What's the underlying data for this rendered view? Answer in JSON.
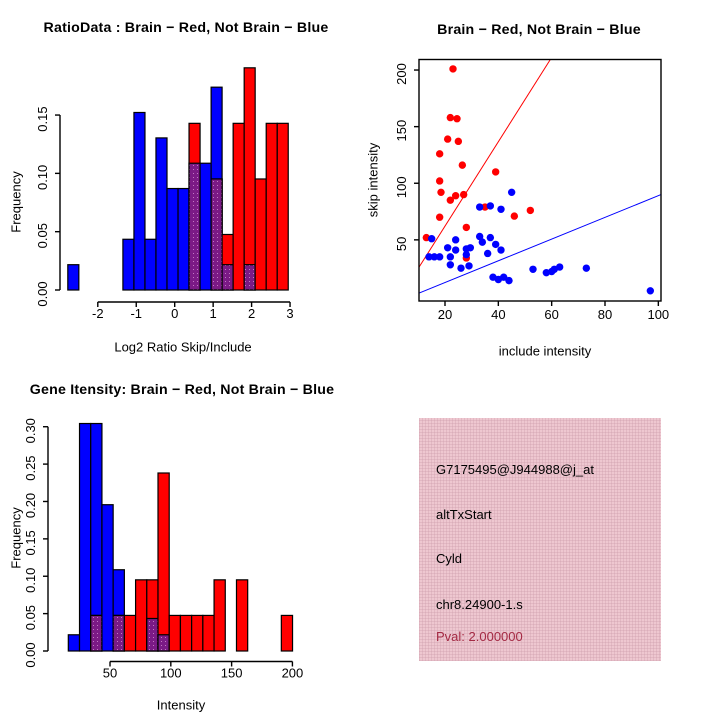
{
  "colors": {
    "blue": "#0000ff",
    "red": "#ff0000",
    "overlap_purple": "#7b1a86",
    "overlap_dot": "#c478c4",
    "panel_pink": "#eec7d0",
    "pval_red": "#a42a44",
    "axis_black": "#000000",
    "background": "#ffffff"
  },
  "legend_convention": "Brain = Red, Not Brain = Blue, overlap = purple",
  "chart_data": [
    {
      "id": "ratio_hist",
      "type": "bar",
      "variant": "overlaid-histogram",
      "title": "RatioData : Brain − Red, Not Brain − Blue",
      "xlabel": "Log2 Ratio Skip/Include",
      "ylabel": "Frequency",
      "xlim": [
        -2.983,
        3.337
      ],
      "ylim": [
        0,
        0.1972
      ],
      "grid": false,
      "xticks": [
        {
          "v": -2,
          "label": "-2"
        },
        {
          "v": -1,
          "label": "-1"
        },
        {
          "v": 0,
          "label": "0"
        },
        {
          "v": 1,
          "label": "1"
        },
        {
          "v": 2,
          "label": "2"
        },
        {
          "v": 3,
          "label": "3"
        }
      ],
      "yticks": [
        {
          "v": 0.0,
          "label": "0.00"
        },
        {
          "v": 0.05,
          "label": "0.05"
        },
        {
          "v": 0.1,
          "label": "0.10"
        },
        {
          "v": 0.15,
          "label": "0.15"
        }
      ],
      "bars": [
        {
          "x0": -2.78,
          "x1": -2.493,
          "blue": 0.0217,
          "red": 0
        },
        {
          "x0": -1.347,
          "x1": -1.06,
          "blue": 0.0435,
          "red": 0
        },
        {
          "x0": -1.06,
          "x1": -0.773,
          "blue": 0.1522,
          "red": 0
        },
        {
          "x0": -0.773,
          "x1": -0.487,
          "blue": 0.0435,
          "red": 0
        },
        {
          "x0": -0.487,
          "x1": -0.2,
          "blue": 0.1304,
          "red": 0
        },
        {
          "x0": -0.2,
          "x1": 0.087,
          "blue": 0.087,
          "red": 0
        },
        {
          "x0": 0.087,
          "x1": 0.373,
          "blue": 0.087,
          "red": 0
        },
        {
          "x0": 0.373,
          "x1": 0.66,
          "blue": 0.1087,
          "red": 0.1429
        },
        {
          "x0": 0.66,
          "x1": 0.947,
          "blue": 0.1087,
          "red": 0
        },
        {
          "x0": 0.947,
          "x1": 1.233,
          "blue": 0.1739,
          "red": 0.0952
        },
        {
          "x0": 1.233,
          "x1": 1.52,
          "blue": 0.0217,
          "red": 0.0476
        },
        {
          "x0": 1.52,
          "x1": 1.807,
          "blue": 0,
          "red": 0.1429
        },
        {
          "x0": 1.807,
          "x1": 2.093,
          "blue": 0.0217,
          "red": 0.1905
        },
        {
          "x0": 2.093,
          "x1": 2.38,
          "blue": 0,
          "red": 0.0952
        },
        {
          "x0": 2.38,
          "x1": 2.667,
          "blue": 0,
          "red": 0.1429
        },
        {
          "x0": 2.667,
          "x1": 2.953,
          "blue": 0,
          "red": 0.1429
        }
      ]
    },
    {
      "id": "intensity_scatter",
      "type": "scatter",
      "title": "Brain − Red, Not Brain − Blue",
      "xlabel": "include intensity",
      "ylabel": "skip intensity",
      "xlim": [
        10.25,
        101
      ],
      "ylim": [
        -4,
        209.3
      ],
      "grid": false,
      "box": true,
      "xticks": [
        {
          "v": 20,
          "label": "20"
        },
        {
          "v": 40,
          "label": "40"
        },
        {
          "v": 60,
          "label": "60"
        },
        {
          "v": 80,
          "label": "80"
        },
        {
          "v": 100,
          "label": "100"
        }
      ],
      "yticks": [
        {
          "v": 50,
          "label": "50"
        },
        {
          "v": 100,
          "label": "100"
        },
        {
          "v": 150,
          "label": "150"
        },
        {
          "v": 200,
          "label": "200"
        }
      ],
      "series": [
        {
          "name": "Brain",
          "color": "red",
          "points": [
            [
              23,
              201
            ],
            [
              22,
              158
            ],
            [
              24.5,
              157
            ],
            [
              21,
              139
            ],
            [
              25,
              137
            ],
            [
              18,
              126
            ],
            [
              26.5,
              116
            ],
            [
              39,
              110
            ],
            [
              18,
              102
            ],
            [
              18.5,
              92
            ],
            [
              22,
              85
            ],
            [
              24,
              89
            ],
            [
              27,
              90
            ],
            [
              18,
              70
            ],
            [
              28,
              61
            ],
            [
              35,
              79
            ],
            [
              46,
              71
            ],
            [
              52,
              76
            ],
            [
              13,
              52
            ],
            [
              28,
              34
            ]
          ]
        },
        {
          "name": "Not Brain",
          "color": "blue",
          "points": [
            [
              15,
              51
            ],
            [
              24,
              50
            ],
            [
              33,
              53
            ],
            [
              37,
              52
            ],
            [
              34,
              48
            ],
            [
              45,
              92
            ],
            [
              33,
              79
            ],
            [
              37,
              80
            ],
            [
              41,
              77
            ],
            [
              21,
              43
            ],
            [
              24,
              41
            ],
            [
              28,
              42
            ],
            [
              29.5,
              43
            ],
            [
              39,
              46
            ],
            [
              41,
              41
            ],
            [
              36,
              38
            ],
            [
              14,
              35
            ],
            [
              16,
              35
            ],
            [
              18,
              35
            ],
            [
              22,
              35
            ],
            [
              28,
              37
            ],
            [
              22,
              28
            ],
            [
              26,
              25
            ],
            [
              29,
              27
            ],
            [
              38,
              17
            ],
            [
              40,
              15
            ],
            [
              42,
              17
            ],
            [
              44,
              14
            ],
            [
              53,
              24
            ],
            [
              58,
              21
            ],
            [
              60,
              22
            ],
            [
              61,
              24
            ],
            [
              63,
              26
            ],
            [
              73,
              25
            ],
            [
              97,
              5
            ]
          ]
        }
      ],
      "lines": [
        {
          "color": "red",
          "from": [
            10.3,
            26
          ],
          "to": [
            59.5,
            209.3
          ]
        },
        {
          "color": "blue",
          "from": [
            10.3,
            3
          ],
          "to": [
            101,
            90
          ]
        }
      ]
    },
    {
      "id": "gene_hist",
      "type": "bar",
      "variant": "overlaid-histogram",
      "title": "Gene Itensity: Brain − Red, Not Brain − Blue",
      "xlabel": "Intensity",
      "ylabel": "Frequency",
      "xlim": [
        -1,
        208.7
      ],
      "ylim": [
        0,
        0.309
      ],
      "grid": false,
      "xticks": [
        {
          "v": 50,
          "label": "50"
        },
        {
          "v": 100,
          "label": "100"
        },
        {
          "v": 150,
          "label": "150"
        },
        {
          "v": 200,
          "label": "200"
        }
      ],
      "yticks": [
        {
          "v": 0.0,
          "label": "0.00"
        },
        {
          "v": 0.05,
          "label": "0.05"
        },
        {
          "v": 0.1,
          "label": "0.10"
        },
        {
          "v": 0.15,
          "label": "0.15"
        },
        {
          "v": 0.2,
          "label": "0.20"
        },
        {
          "v": 0.25,
          "label": "0.25"
        },
        {
          "v": 0.3,
          "label": "0.30"
        }
      ],
      "bars": [
        {
          "x0": 15.7,
          "x1": 24.92,
          "blue": 0.0217,
          "red": 0
        },
        {
          "x0": 24.92,
          "x1": 34.14,
          "blue": 0.3043,
          "red": 0
        },
        {
          "x0": 34.14,
          "x1": 43.36,
          "blue": 0.3043,
          "red": 0.0476
        },
        {
          "x0": 43.36,
          "x1": 52.58,
          "blue": 0.1957,
          "red": 0
        },
        {
          "x0": 52.58,
          "x1": 61.8,
          "blue": 0.1087,
          "red": 0.0476
        },
        {
          "x0": 61.8,
          "x1": 71.02,
          "blue": 0,
          "red": 0.0476
        },
        {
          "x0": 71.02,
          "x1": 80.24,
          "blue": 0,
          "red": 0.0952
        },
        {
          "x0": 80.24,
          "x1": 89.46,
          "blue": 0.0435,
          "red": 0.0952
        },
        {
          "x0": 89.46,
          "x1": 98.68,
          "blue": 0.0217,
          "red": 0.2381
        },
        {
          "x0": 98.68,
          "x1": 107.9,
          "blue": 0,
          "red": 0.0476
        },
        {
          "x0": 107.9,
          "x1": 117.12,
          "blue": 0,
          "red": 0.0476
        },
        {
          "x0": 117.12,
          "x1": 126.34,
          "blue": 0,
          "red": 0.0476
        },
        {
          "x0": 126.34,
          "x1": 135.56,
          "blue": 0,
          "red": 0.0476
        },
        {
          "x0": 135.56,
          "x1": 144.78,
          "blue": 0,
          "red": 0.0952
        },
        {
          "x0": 154.0,
          "x1": 163.22,
          "blue": 0,
          "red": 0.0952
        },
        {
          "x0": 190.88,
          "x1": 200.1,
          "blue": 0,
          "red": 0.0476
        }
      ]
    },
    {
      "id": "info_panel",
      "type": "text-panel",
      "background": "#eec7d0",
      "lines": [
        {
          "text": "G7175495@J944988@j_at",
          "color": "#000000"
        },
        {
          "text": "altTxStart",
          "color": "#000000"
        },
        {
          "text": "Cyld",
          "color": "#000000"
        },
        {
          "text": "chr8.24900-1.s",
          "color": "#000000"
        },
        {
          "text": "Pval: 2.000000",
          "color": "#a42a44"
        }
      ]
    }
  ]
}
